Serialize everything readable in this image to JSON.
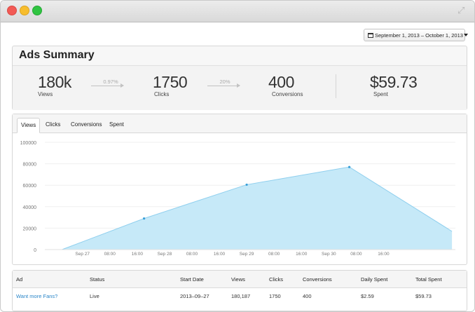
{
  "date_range": "September 1, 2013 – October 1, 2013",
  "summary": {
    "title": "Ads Summary",
    "stats": [
      {
        "value": "180k",
        "label": "Views"
      },
      {
        "value": "1750",
        "label": "Clicks"
      },
      {
        "value": "400",
        "label": "Conversions"
      },
      {
        "value": "$59.73",
        "label": "Spent"
      }
    ],
    "rates": [
      "0.97%",
      "20%"
    ]
  },
  "tabs": [
    "Views",
    "Clicks",
    "Conversions",
    "Spent"
  ],
  "active_tab": "Views",
  "chart_data": {
    "type": "area",
    "y_ticks": [
      "100000",
      "80000",
      "60000",
      "40000",
      "20000",
      "0"
    ],
    "ylim": [
      0,
      100000
    ],
    "x_ticks": [
      "Sep 27",
      "08:00",
      "16:00",
      "Sep 28",
      "08:00",
      "16:00",
      "Sep 29",
      "08:00",
      "16:00",
      "Sep 30",
      "08:00",
      "16:00"
    ],
    "x_hours": [
      0,
      8,
      16,
      24,
      32,
      40,
      48,
      56,
      64,
      72,
      80,
      88
    ],
    "points": [
      {
        "hour": -6,
        "value": 0
      },
      {
        "hour": 18,
        "value": 29000
      },
      {
        "hour": 48,
        "value": 60500
      },
      {
        "hour": 78,
        "value": 77000
      },
      {
        "hour": 108,
        "value": 17000
      }
    ],
    "markers": [
      1,
      2,
      3
    ],
    "x_range": [
      -11,
      109
    ],
    "fill": "#c6e9f8",
    "line": "#8fcfee",
    "grid": true
  },
  "table": {
    "headers": [
      "Ad",
      "Status",
      "Start Date",
      "Views",
      "Clicks",
      "Conversions",
      "Daily Spent",
      "Total Spent"
    ],
    "rows": [
      [
        "Want more Fans?",
        "Live",
        "2013–09–27",
        "180,187",
        "1750",
        "400",
        "$2.59",
        "$59.73"
      ]
    ]
  }
}
